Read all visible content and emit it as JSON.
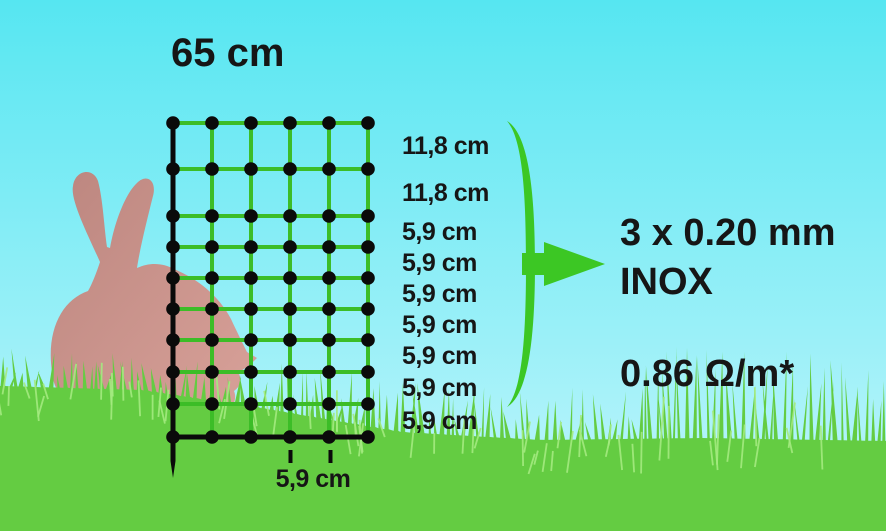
{
  "labels": {
    "net_height": "65 cm",
    "row_spacings": [
      "11,8 cm",
      "11,8 cm",
      "5,9 cm",
      "5,9 cm",
      "5,9 cm",
      "5,9 cm",
      "5,9 cm",
      "5,9 cm",
      "5,9 cm"
    ],
    "column_spacing": "5,9 cm"
  },
  "spec": {
    "conductor": "3 x 0.20 mm",
    "material": "INOX",
    "resistance": "0.86 Ω/m*"
  },
  "colors": {
    "sky_top": "#56E6F1",
    "sky_bottom": "#AFF3FA",
    "net_green": "#3CBD27",
    "accent_green": "#3CC724",
    "grass_green": "#64CC42",
    "grass_highlight": "#A4EB80",
    "rabbit_dark": "#BC867F",
    "rabbit_light": "#D9A29A",
    "line_black": "#0A0A0A",
    "text_black": "#161616"
  }
}
